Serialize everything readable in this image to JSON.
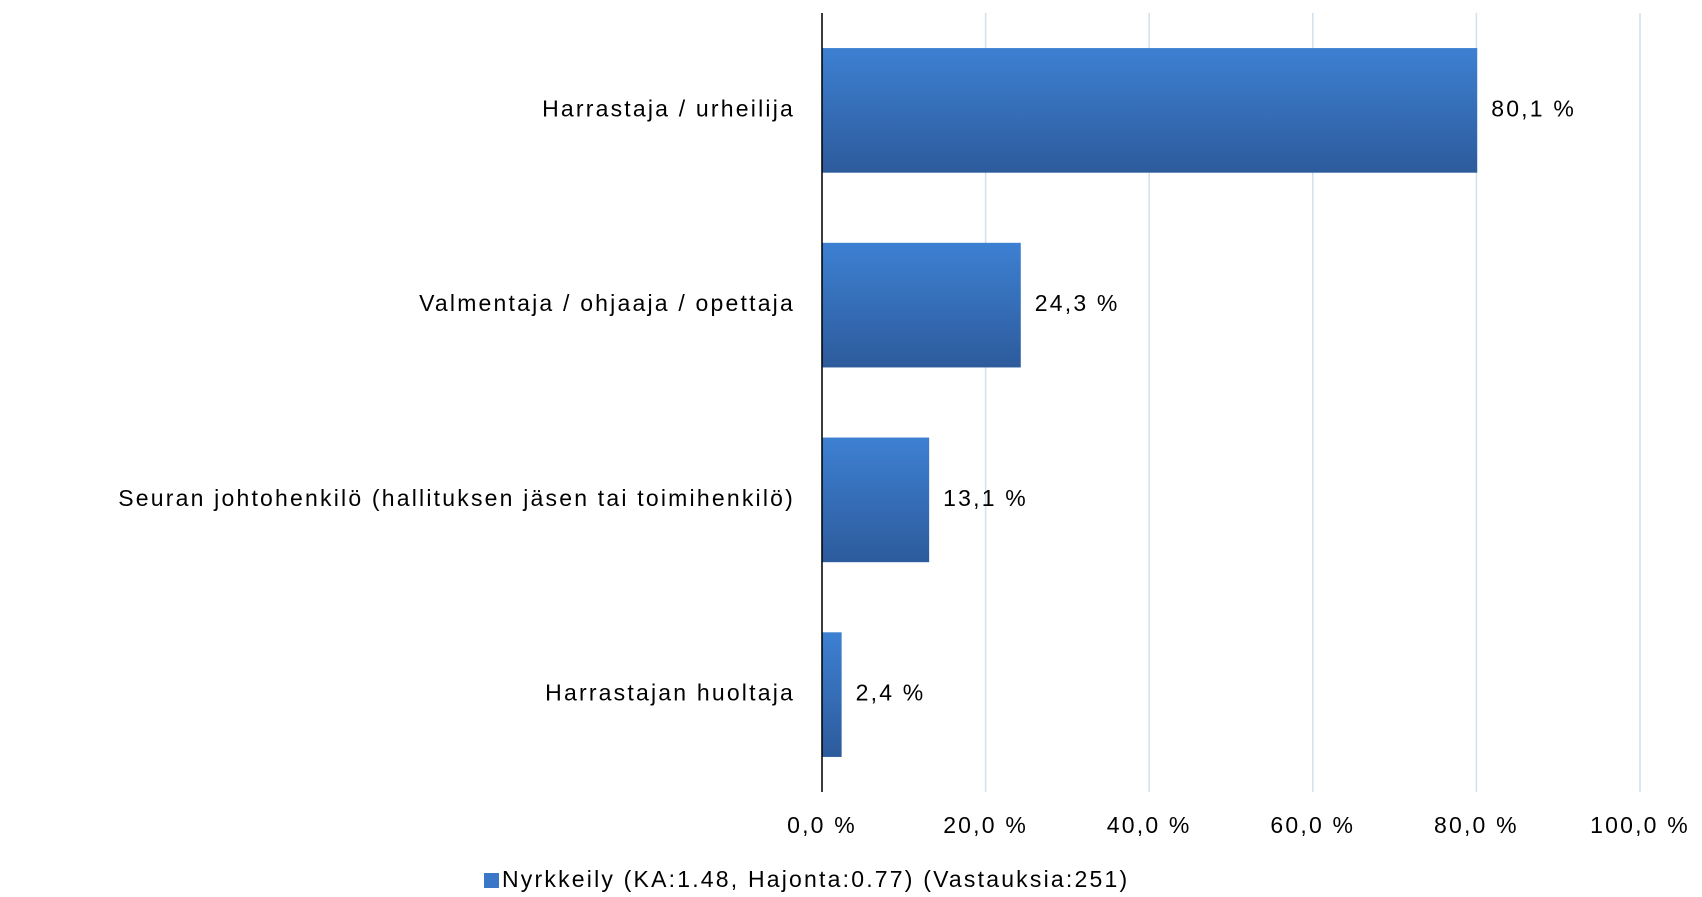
{
  "chart_data": {
    "type": "bar",
    "orientation": "horizontal",
    "categories": [
      "Harrastaja / urheilija",
      "Valmentaja / ohjaaja / opettaja",
      "Seuran johtohenkilö (hallituksen jäsen tai toimihenkilö)",
      "Harrastajan huoltaja"
    ],
    "series": [
      {
        "name": "Nyrkkeily (KA:1.48, Hajonta:0.77) (Vastauksia:251)",
        "color": "#3a77c6",
        "values": [
          80.1,
          24.3,
          13.1,
          2.4
        ],
        "value_labels": [
          "80,1 %",
          "24,3 %",
          "13,1 %",
          "2,4 %"
        ]
      }
    ],
    "xlim": [
      0,
      100
    ],
    "xticks": [
      {
        "value": 0,
        "label": "0,0 %"
      },
      {
        "value": 20,
        "label": "20,0 %"
      },
      {
        "value": 40,
        "label": "40,0 %"
      },
      {
        "value": 60,
        "label": "60,0 %"
      },
      {
        "value": 80,
        "label": "80,0 %"
      },
      {
        "value": 100,
        "label": "100,0 %"
      }
    ],
    "grid": true,
    "legend": "bottom"
  }
}
